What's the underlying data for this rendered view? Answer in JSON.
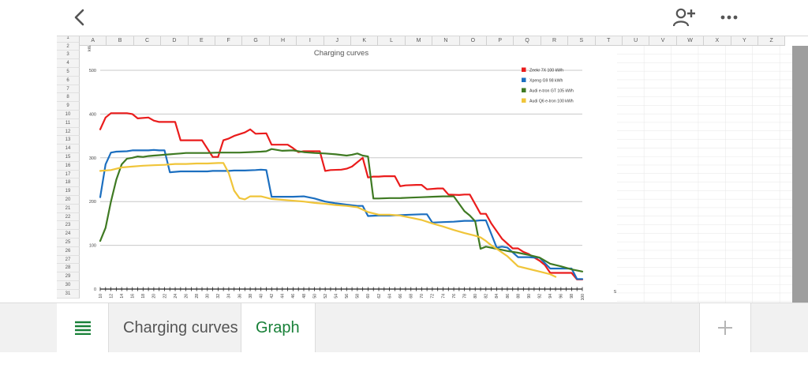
{
  "toolbar": {
    "back_icon": "chevron-left-icon",
    "share_icon": "add-person-icon",
    "more_icon": "more-horizontal-icon"
  },
  "columns": [
    "A",
    "B",
    "C",
    "D",
    "E",
    "F",
    "G",
    "H",
    "I",
    "J",
    "K",
    "L",
    "M",
    "N",
    "O",
    "P",
    "Q",
    "R",
    "S",
    "T",
    "U",
    "V",
    "W",
    "X",
    "Y",
    "Z"
  ],
  "rows": [
    "1",
    "2",
    "3",
    "4",
    "5",
    "6",
    "7",
    "8",
    "9",
    "10",
    "11",
    "12",
    "13",
    "14",
    "15",
    "16",
    "17",
    "18",
    "19",
    "20",
    "21",
    "22",
    "23",
    "24",
    "25",
    "26",
    "27",
    "28",
    "29",
    "30",
    "31"
  ],
  "sheet_tabs": {
    "menu_icon": "list-menu-icon",
    "tabs": [
      "Charging curves",
      "Graph"
    ],
    "active": "Graph",
    "add_icon": "plus-icon"
  },
  "colors": {
    "accent": "#188038"
  },
  "chart_data": {
    "type": "line",
    "title": "Charging curves",
    "ylabel": "kW",
    "xlabel": "SoC",
    "ylim": [
      0,
      500
    ],
    "yticks": [
      0,
      100,
      200,
      300,
      400,
      500
    ],
    "xlim": [
      10,
      100
    ],
    "xticks": [
      10,
      12,
      14,
      16,
      18,
      20,
      22,
      24,
      26,
      28,
      30,
      32,
      34,
      36,
      38,
      40,
      42,
      44,
      46,
      48,
      50,
      52,
      54,
      56,
      58,
      60,
      62,
      64,
      66,
      68,
      70,
      72,
      74,
      76,
      78,
      80,
      82,
      84,
      86,
      88,
      90,
      92,
      94,
      96,
      98,
      100
    ],
    "grid": true,
    "legend_position": "right",
    "series": [
      {
        "name": "Zeekr 7X 100 kWh",
        "color": "#ea1c1c",
        "x": [
          10,
          11,
          12,
          13,
          15,
          16,
          17,
          19,
          20,
          21,
          24,
          25,
          27,
          29,
          31,
          32,
          33,
          34,
          35,
          37,
          38,
          39,
          41,
          42,
          43,
          45,
          46,
          47,
          48,
          49,
          50,
          51,
          52,
          53,
          55,
          56,
          57,
          59,
          60,
          61,
          62,
          63,
          65,
          66,
          67,
          69,
          70,
          71,
          73,
          74,
          75,
          77,
          78,
          79,
          81,
          82,
          83,
          85,
          87,
          88,
          89,
          90,
          91,
          92,
          93,
          94,
          95,
          96,
          97,
          98,
          99,
          100
        ],
        "y": [
          365,
          392,
          402,
          402,
          402,
          400,
          390,
          392,
          385,
          382,
          382,
          340,
          340,
          340,
          302,
          302,
          340,
          344,
          350,
          358,
          365,
          355,
          356,
          330,
          330,
          330,
          322,
          313,
          315,
          315,
          315,
          315,
          270,
          272,
          273,
          275,
          280,
          300,
          255,
          257,
          257,
          258,
          258,
          235,
          237,
          238,
          238,
          228,
          230,
          230,
          216,
          215,
          216,
          216,
          172,
          172,
          150,
          115,
          93,
          93,
          85,
          80,
          72,
          65,
          55,
          37,
          37,
          37,
          37,
          37,
          22,
          22
        ]
      },
      {
        "name": "Xpeng G9 98 kWh",
        "color": "#1c6fc0",
        "x": [
          10,
          11,
          12,
          13,
          15,
          16,
          17,
          19,
          20,
          21,
          22,
          23,
          25,
          26,
          27,
          28,
          29,
          30,
          31,
          32,
          33,
          34,
          35,
          36,
          37,
          39,
          40,
          41,
          42,
          44,
          46,
          48,
          50,
          52,
          54,
          56,
          58,
          59,
          60,
          62,
          64,
          66,
          68,
          70,
          71,
          72,
          74,
          76,
          78,
          80,
          81,
          82,
          84,
          85,
          86,
          88,
          90,
          91,
          92,
          94,
          95,
          96,
          97,
          98,
          99,
          100
        ],
        "y": [
          210,
          285,
          312,
          314,
          315,
          317,
          317,
          317,
          318,
          317,
          317,
          267,
          269,
          269,
          269,
          269,
          269,
          269,
          270,
          270,
          270,
          270,
          271,
          271,
          271,
          272,
          273,
          272,
          211,
          211,
          211,
          212,
          207,
          200,
          196,
          193,
          190,
          190,
          167,
          168,
          168,
          169,
          170,
          171,
          171,
          152,
          153,
          154,
          156,
          156,
          157,
          157,
          95,
          97,
          95,
          73,
          73,
          72,
          72,
          47,
          47,
          47,
          47,
          47,
          23,
          23
        ]
      },
      {
        "name": "Audi e-tron GT 105 kWh",
        "color": "#3f7a23",
        "x": [
          10,
          11,
          12,
          13,
          14,
          15,
          16,
          17,
          18,
          19,
          20,
          21,
          22,
          23,
          24,
          25,
          26,
          28,
          30,
          32,
          34,
          36,
          38,
          40,
          41,
          42,
          43,
          44,
          46,
          47,
          48,
          49,
          50,
          52,
          54,
          56,
          57,
          58,
          59,
          60,
          61,
          62,
          64,
          66,
          68,
          70,
          72,
          74,
          76,
          78,
          79,
          80,
          81,
          82,
          84,
          86,
          88,
          90,
          92,
          94,
          96,
          98,
          100
        ],
        "y": [
          110,
          140,
          200,
          250,
          285,
          298,
          300,
          303,
          302,
          304,
          305,
          306,
          307,
          308,
          309,
          310,
          311,
          311,
          311,
          312,
          312,
          312,
          313,
          314,
          315,
          320,
          318,
          316,
          317,
          315,
          313,
          312,
          311,
          310,
          308,
          305,
          307,
          310,
          305,
          303,
          207,
          207,
          208,
          208,
          209,
          210,
          211,
          212,
          212,
          178,
          168,
          155,
          92,
          97,
          92,
          87,
          83,
          78,
          72,
          58,
          52,
          45,
          40
        ]
      },
      {
        "name": "Audi Q6 e-tron 100 kWh",
        "color": "#f0c53a",
        "x": [
          10,
          12,
          14,
          16,
          18,
          20,
          22,
          24,
          26,
          28,
          30,
          32,
          33,
          34,
          35,
          36,
          37,
          38,
          40,
          42,
          44,
          46,
          48,
          50,
          52,
          54,
          56,
          58,
          60,
          62,
          64,
          66,
          68,
          70,
          72,
          74,
          76,
          78,
          80,
          81,
          82,
          83,
          84,
          86,
          88,
          90,
          92,
          94,
          95
        ],
        "y": [
          270,
          272,
          278,
          280,
          282,
          283,
          284,
          286,
          286,
          287,
          287,
          288,
          288,
          265,
          225,
          208,
          205,
          212,
          212,
          206,
          204,
          202,
          200,
          197,
          195,
          192,
          190,
          187,
          176,
          170,
          170,
          168,
          163,
          158,
          150,
          143,
          135,
          128,
          122,
          118,
          110,
          100,
          92,
          75,
          52,
          46,
          40,
          34,
          28
        ]
      }
    ]
  }
}
